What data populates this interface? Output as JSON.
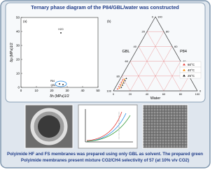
{
  "header": {
    "title": "Ternary phase diagram of the P84/GBL/water was constructed"
  },
  "plot_a": {
    "panel": "(a)",
    "x_label": "δh (MPa)1/2",
    "y_label": "δp (MPa)1/2",
    "x_ticks": [
      "0",
      "10",
      "20",
      "30",
      "40",
      "50"
    ],
    "y_ticks": [
      "0",
      "10",
      "20",
      "30",
      "40",
      "50"
    ],
    "points": [
      "H2O",
      "P84",
      "GBL"
    ]
  },
  "plot_b": {
    "panel": "(b)",
    "axes": [
      "GBL",
      "P84",
      "Water"
    ],
    "ticks": [
      "0",
      "20",
      "40",
      "60",
      "80",
      "100"
    ],
    "legend": [
      {
        "label": "60°C",
        "color": "#e53935"
      },
      {
        "label": "40°C",
        "color": "#fb8c00"
      },
      {
        "label": "25°C",
        "color": "#222222"
      }
    ]
  },
  "footer": {
    "lines": [
      "Polyimide HF and FS membranes was prepared using only GBL as solvent. The prepared green",
      "Polyimide membranes present mixture CO2/CH4 selectivity of 57 (at 10% v/v CO2)"
    ]
  }
}
